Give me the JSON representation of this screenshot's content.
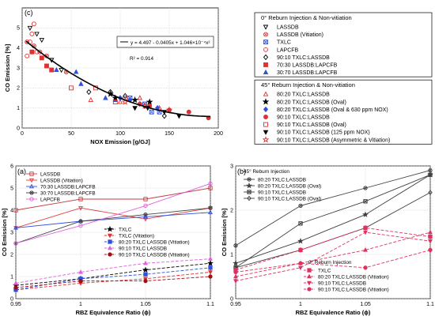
{
  "chart_data": [
    {
      "panel": "(c)",
      "type": "scatter",
      "xlabel": "NOX Emission [g/GJ]",
      "ylabel": "CO Emission [%]",
      "xlim": [
        0,
        200
      ],
      "ylim": [
        0,
        6
      ],
      "xticks": [
        "0",
        "50",
        "100",
        "150",
        "200"
      ],
      "yticks": [
        "0",
        "1",
        "2",
        "3",
        "4",
        "5"
      ],
      "grid": true,
      "fit": {
        "equation": "y = 4.497 - 0.0405x + 1.046×10⁻⁴x²",
        "r2": "R² = 0.914",
        "a": 4.497,
        "b": -0.0405,
        "c": 0.0001046
      },
      "legend_group1_title": "0° Reburn Injection & Non-vitiation",
      "legend_group2_title": "45° Reburn Injection & Non-vitiation",
      "series": [
        {
          "name": "LASSDB",
          "group": 1,
          "marker": "tri-down-open",
          "color": "#000000",
          "points": [
            [
              8,
              5.0
            ],
            [
              15,
              4.7
            ],
            [
              20,
              4.4
            ],
            [
              30,
              3.4
            ],
            [
              40,
              2.9
            ]
          ]
        },
        {
          "name": "LASSDB (Vitiation)",
          "group": 1,
          "marker": "circle-x",
          "color": "#e03030",
          "points": [
            [
              5,
              4.3
            ],
            [
              12,
              4.1
            ],
            [
              18,
              3.8
            ],
            [
              25,
              3.6
            ],
            [
              45,
              2.8
            ]
          ]
        },
        {
          "name": "TXLC",
          "group": 1,
          "marker": "square-x",
          "color": "#3050e0",
          "points": [
            [
              110,
              1.5
            ],
            [
              125,
              1.2
            ],
            [
              132,
              0.8
            ],
            [
              140,
              0.8
            ]
          ]
        },
        {
          "name": "LAPCFB",
          "group": 1,
          "marker": "circle-open",
          "color": "#e03030",
          "points": [
            [
              5,
              3.6
            ],
            [
              8,
              4.3
            ],
            [
              10,
              4.7
            ],
            [
              12,
              5.2
            ],
            [
              15,
              3.8
            ]
          ]
        },
        {
          "name": "90:10 TXLC:LASSDB",
          "group": 1,
          "marker": "diamond-open",
          "color": "#000000",
          "points": [
            [
              68,
              1.8
            ],
            [
              90,
              1.8
            ],
            [
              105,
              1.6
            ],
            [
              125,
              1.1
            ],
            [
              145,
              0.6
            ]
          ]
        },
        {
          "name": "70:30 LASSDB:LAPCFB",
          "group": 1,
          "marker": "square-filled",
          "color": "#e03030",
          "points": [
            [
              10,
              3.8
            ],
            [
              20,
              3.5
            ],
            [
              25,
              3.1
            ],
            [
              30,
              2.9
            ]
          ]
        },
        {
          "name": "30:70 LASSDB:LAPCFB",
          "group": 1,
          "marker": "tri-up-filled",
          "color": "#3050e0",
          "points": [
            [
              35,
              2.9
            ],
            [
              55,
              2.8
            ],
            [
              60,
              2.2
            ],
            [
              85,
              1.5
            ],
            [
              95,
              1.4
            ]
          ]
        },
        {
          "name": "80:20 TXLC:LASSDB",
          "group": 2,
          "marker": "tri-up-open",
          "color": "#e03030",
          "points": [
            [
              70,
              1.4
            ],
            [
              100,
              1.3
            ],
            [
              120,
              1.5
            ],
            [
              140,
              1.0
            ]
          ]
        },
        {
          "name": "80:20 TXLC:LASSDB (Oval)",
          "group": 2,
          "marker": "star-filled",
          "color": "#000000",
          "points": [
            [
              90,
              1.7
            ],
            [
              95,
              1.5
            ],
            [
              115,
              1.4
            ],
            [
              130,
              1.3
            ]
          ]
        },
        {
          "name": "80:20 TXLC:LASSDB (Oval & 630 ppm NOX)",
          "group": 2,
          "marker": "diamond-filled",
          "color": "#3050e0",
          "points": [
            [
              100,
              1.5
            ],
            [
              110,
              1.4
            ],
            [
              120,
              1.2
            ],
            [
              138,
              1.0
            ]
          ]
        },
        {
          "name": "90:10 TXLC:LASSDB",
          "group": 2,
          "marker": "circle-filled",
          "color": "#e03030",
          "points": [
            [
              120,
              1.2
            ],
            [
              130,
              1.1
            ],
            [
              150,
              0.9
            ],
            [
              170,
              0.8
            ],
            [
              190,
              0.5
            ]
          ]
        },
        {
          "name": "90:10 TXLC:LASSDB (Oval)",
          "group": 2,
          "marker": "square-open",
          "color": "#e03030",
          "points": [
            [
              50,
              2.0
            ],
            [
              75,
              2.0
            ],
            [
              95,
              1.3
            ],
            [
              105,
              1.5
            ]
          ]
        },
        {
          "name": "90:10 TXLC:LASSDB (125 ppm NOX)",
          "group": 2,
          "marker": "tri-down-filled",
          "color": "#000000",
          "points": [
            [
              115,
              1.0
            ],
            [
              128,
              1.0
            ],
            [
              145,
              0.8
            ],
            [
              160,
              0.6
            ]
          ]
        },
        {
          "name": "90:10 TXLC:LASSDB (Asymmetric & Vitiation)",
          "group": 2,
          "marker": "star-open",
          "color": "#e03030",
          "points": [
            [
              105,
              1.3
            ],
            [
              125,
              1.1
            ],
            [
              150,
              0.9
            ]
          ]
        }
      ]
    },
    {
      "panel": "(a)",
      "type": "line",
      "xlabel": "RBZ Equivalence Ratio (ϕ)",
      "ylabel": "CO Emission [%]",
      "x": [
        0.95,
        1.0,
        1.05,
        1.1
      ],
      "xticks": [
        "0.95",
        "1",
        "1.05",
        "1.1"
      ],
      "ylim": [
        0,
        6
      ],
      "yticks": [
        "0",
        "1",
        "2",
        "3",
        "4",
        "5",
        "6"
      ],
      "grid": true,
      "series": [
        {
          "name": "LASSDB",
          "color": "#c04040",
          "marker": "square-open",
          "dash": "",
          "values": [
            4.0,
            4.5,
            4.5,
            5.0
          ]
        },
        {
          "name": "LASSDB (Vitiation)",
          "color": "#e04040",
          "marker": "tri-down-open",
          "dash": "",
          "values": [
            3.2,
            4.1,
            3.6,
            4.1
          ]
        },
        {
          "name": "70:30 LASSDB:LAPCFB",
          "color": "#3050e0",
          "marker": "tri-up-open",
          "dash": "",
          "values": [
            3.2,
            3.5,
            3.7,
            3.9
          ]
        },
        {
          "name": "30:70 LASSDB:LAPCFB",
          "color": "#404040",
          "marker": "circle-x",
          "dash": "",
          "values": [
            2.5,
            3.5,
            3.8,
            4.1
          ]
        },
        {
          "name": "LAPCFB",
          "color": "#e060e0",
          "marker": "circle-open",
          "dash": "",
          "values": [
            2.5,
            3.3,
            4.2,
            5.2
          ]
        },
        {
          "name": "TXLC",
          "color": "#000000",
          "marker": "star-filled",
          "dash": "4,2",
          "values": [
            0.6,
            0.9,
            1.3,
            1.6
          ]
        },
        {
          "name": "TXLC (Vitiation)",
          "color": "#e03030",
          "marker": "tri-down-filled",
          "dash": "4,2",
          "values": [
            0.4,
            0.7,
            0.9,
            1.2
          ]
        },
        {
          "name": "80:20 TXLC LASSDB (Vitiation)",
          "color": "#3050e0",
          "marker": "square-filled",
          "dash": "4,2",
          "values": [
            0.4,
            0.9,
            1.1,
            1.4
          ]
        },
        {
          "name": "90:10 TXLC LASSDB",
          "color": "#e060e0",
          "marker": "tri-up-filled",
          "dash": "4,2",
          "values": [
            0.7,
            1.2,
            1.6,
            1.8
          ]
        },
        {
          "name": "90:10 TXLC LASSDB (Vitiation)",
          "color": "#a01010",
          "marker": "circle-filled",
          "dash": "4,2",
          "values": [
            0.5,
            0.8,
            0.8,
            1.0
          ]
        }
      ]
    },
    {
      "panel": "(b)",
      "type": "line",
      "xlabel": "RBZ Equivalence Ratio (ϕ)",
      "ylabel": "CO Emission [%]",
      "x": [
        0.95,
        1.0,
        1.05,
        1.1
      ],
      "xticks": [
        "0.95",
        "1",
        "1.05",
        "1.1"
      ],
      "ylim": [
        0,
        3
      ],
      "yticks": [
        "0",
        "1",
        "2",
        "3"
      ],
      "grid": true,
      "group1_title": "45° Reburn Injection",
      "group2_title": "0° Reburn Injection",
      "series": [
        {
          "name": "80:20 TXLC:LASSDB",
          "group": 1,
          "color": "#404040",
          "marker": "circle-x",
          "dash": "",
          "values": [
            1.2,
            2.1,
            2.5,
            2.9
          ]
        },
        {
          "name": "80:20 TXLC:LASSDB (Oval)",
          "group": 1,
          "color": "#404040",
          "marker": "star-filled",
          "dash": "",
          "values": [
            0.8,
            1.3,
            1.9,
            2.8
          ]
        },
        {
          "name": "90:10 TXLC:LASSDB",
          "group": 1,
          "color": "#404040",
          "marker": "square-x",
          "dash": "",
          "values": [
            0.7,
            1.7,
            2.2,
            2.8
          ]
        },
        {
          "name": "90:10 TXLC:LASSDB (Oval)",
          "group": 1,
          "color": "#404040",
          "marker": "diamond-open",
          "dash": "",
          "values": [
            0.7,
            1.1,
            1.6,
            2.4
          ]
        },
        {
          "name": "TXLC",
          "group": 2,
          "color": "#e03060",
          "marker": "square-filled",
          "dash": "4,2",
          "values": [
            0.65,
            1.1,
            1.6,
            1.4
          ]
        },
        {
          "name": "80:20 TXLC:LASSDB (Vitiation)",
          "group": 2,
          "color": "#e03060",
          "marker": "tri-up-filled",
          "dash": "4,2",
          "values": [
            0.5,
            0.8,
            1.1,
            1.5
          ]
        },
        {
          "name": "90:10 TXLC:LASSDB",
          "group": 2,
          "color": "#e03060",
          "marker": "tri-down-filled",
          "dash": "4,2",
          "values": [
            0.4,
            0.7,
            1.5,
            1.3
          ]
        },
        {
          "name": "90:10 TXLC:LASSDB (Vitiation)",
          "group": 2,
          "color": "#e03060",
          "marker": "circle-filled",
          "dash": "4,2",
          "values": [
            0.6,
            0.8,
            0.7,
            1.1
          ]
        }
      ]
    }
  ]
}
